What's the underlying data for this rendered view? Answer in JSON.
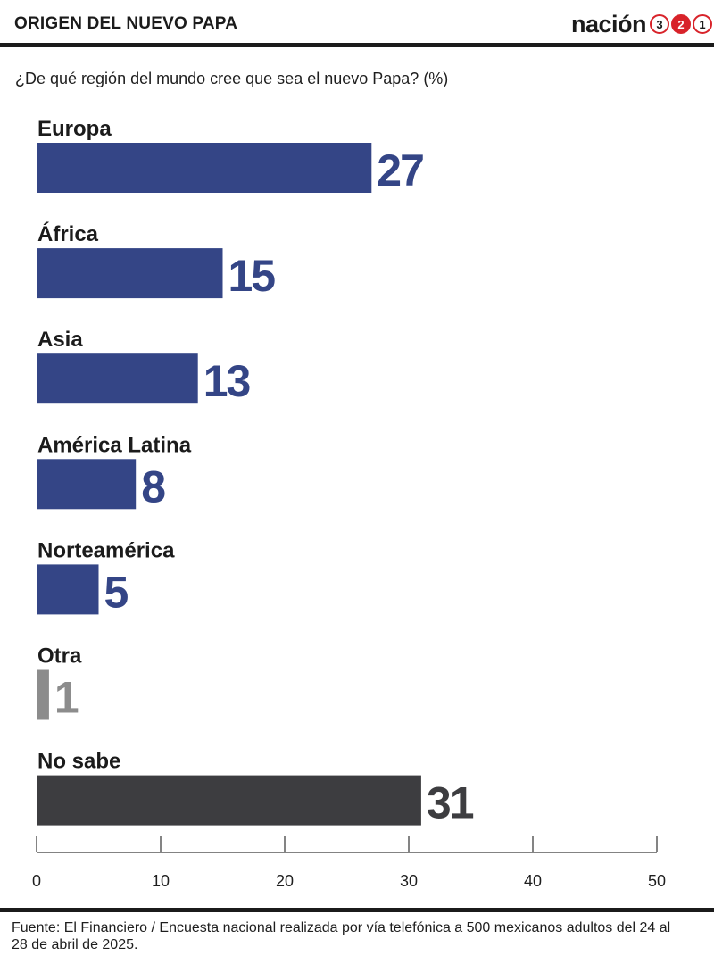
{
  "header": {
    "title": "ORIGEN DEL NUEVO PAPA",
    "brand": {
      "word": "nación",
      "digits": [
        "3",
        "2",
        "1"
      ]
    }
  },
  "subtitle": "¿De qué región del mundo cree que sea el nuevo Papa? (%)",
  "source": "Fuente: El Financiero / Encuesta nacional realizada por vía telefónica a 500 mexicanos adultos del 24 al 28 de abril de 2025.",
  "colors": {
    "primary": "#344586",
    "muted": "#8c8c8c",
    "dark": "#3d3d40",
    "axis": "#5a5a5a"
  },
  "chart_data": {
    "type": "bar",
    "orientation": "horizontal",
    "categories": [
      "Europa",
      "África",
      "Asia",
      "América Latina",
      "Norteamérica",
      "Otra",
      "No sabe"
    ],
    "values": [
      27,
      15,
      13,
      8,
      5,
      1,
      31
    ],
    "value_labels": [
      "27",
      "15",
      "13",
      "8",
      "5",
      "1",
      "31"
    ],
    "bar_colors": [
      "primary",
      "primary",
      "primary",
      "primary",
      "primary",
      "muted",
      "dark"
    ],
    "xlim": [
      0,
      50
    ],
    "xticks": [
      0,
      10,
      20,
      30,
      40,
      50
    ],
    "xtick_labels": [
      "0",
      "10",
      "20",
      "30",
      "40",
      "50"
    ],
    "title": "",
    "xlabel": "",
    "ylabel": "",
    "grid": false,
    "legend": "none"
  }
}
